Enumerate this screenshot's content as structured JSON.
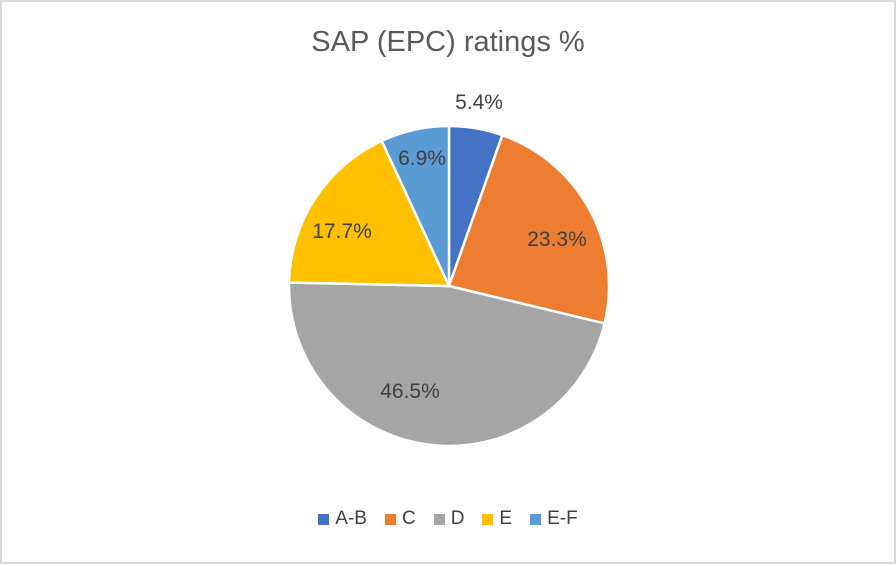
{
  "window": {
    "background": "#ffffff",
    "border_color": "#d9d9d9"
  },
  "chart_data": {
    "type": "pie",
    "title": "SAP (EPC) ratings %",
    "title_color": "#595959",
    "label_color": "#404040",
    "categories": [
      "A-B",
      "C",
      "D",
      "E",
      "E-F"
    ],
    "values": [
      5.4,
      23.3,
      46.5,
      17.7,
      6.9
    ],
    "labels": [
      "5.4%",
      "23.3%",
      "46.5%",
      "17.7%",
      "6.9%"
    ],
    "colors": [
      "#4472C4",
      "#ED7D31",
      "#A5A5A5",
      "#FFC000",
      "#5B9BD5"
    ],
    "slice_border_color": "#FFFFFF",
    "start_angle": 0,
    "direction": "clockwise",
    "legend_position": "bottom",
    "legend_entries": [
      "A-B",
      "C",
      "D",
      "E",
      "E-F"
    ]
  }
}
